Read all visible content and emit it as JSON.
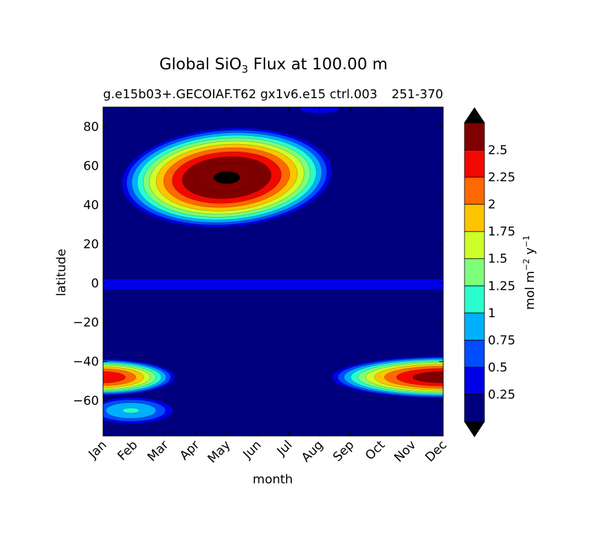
{
  "chart_data": {
    "type": "heatmap",
    "title_prefix": "Global SiO",
    "title_sub": "3",
    "title_suffix": " Flux at 100.00 m",
    "subtitle": "g.e15b03+.GECOIAF.T62 gx1v6.e15 ctrl.003",
    "subtitle_overlap": "251-370",
    "xlabel": "month",
    "ylabel": "latitude",
    "x_categories": [
      "Jan",
      "Feb",
      "Mar",
      "Apr",
      "May",
      "Jun",
      "Jul",
      "Aug",
      "Sep",
      "Oct",
      "Nov",
      "Dec"
    ],
    "y_ticks": [
      80,
      60,
      40,
      20,
      0,
      -20,
      -40,
      -60
    ],
    "y_tick_labels": [
      "80",
      "60",
      "40",
      "20",
      "0",
      "−20",
      "−40",
      "−60"
    ],
    "ylim": [
      -78,
      90
    ],
    "colorbar": {
      "label_main": "mol m",
      "label_exp1": "−2",
      "label_mid": " y",
      "label_exp2": "−1",
      "levels": [
        0,
        0.25,
        0.5,
        0.75,
        1,
        1.25,
        1.5,
        1.75,
        2,
        2.25,
        2.5,
        2.75
      ],
      "tick_labels": [
        "0.25",
        "0.5",
        "0.75",
        "1",
        "1.25",
        "1.5",
        "1.75",
        "2",
        "2.25",
        "2.5"
      ],
      "colors": [
        "#00007f",
        "#0000e6",
        "#004cff",
        "#00b0ff",
        "#29ffce",
        "#7dff7a",
        "#ceff29",
        "#ffc400",
        "#ff6800",
        "#f10800",
        "#7f0000"
      ],
      "under_color": "#000000",
      "over_color": "#000000",
      "extend": "both"
    },
    "features": [
      {
        "name": "Subpolar North Pacific/Atlantic spring bloom",
        "peak_month": 4.0,
        "peak_lat": 54,
        "peak_value": 2.9
      },
      {
        "name": "Equatorial band",
        "lat": 0,
        "value": 0.3
      },
      {
        "name": "Southern Ocean winter band",
        "months": "Oct-Feb",
        "lat": -48,
        "peak_value": 2.6
      },
      {
        "name": "Antarctic coastal",
        "months": "Jan-Apr",
        "lat": -65,
        "peak_value": 1.0
      }
    ]
  }
}
